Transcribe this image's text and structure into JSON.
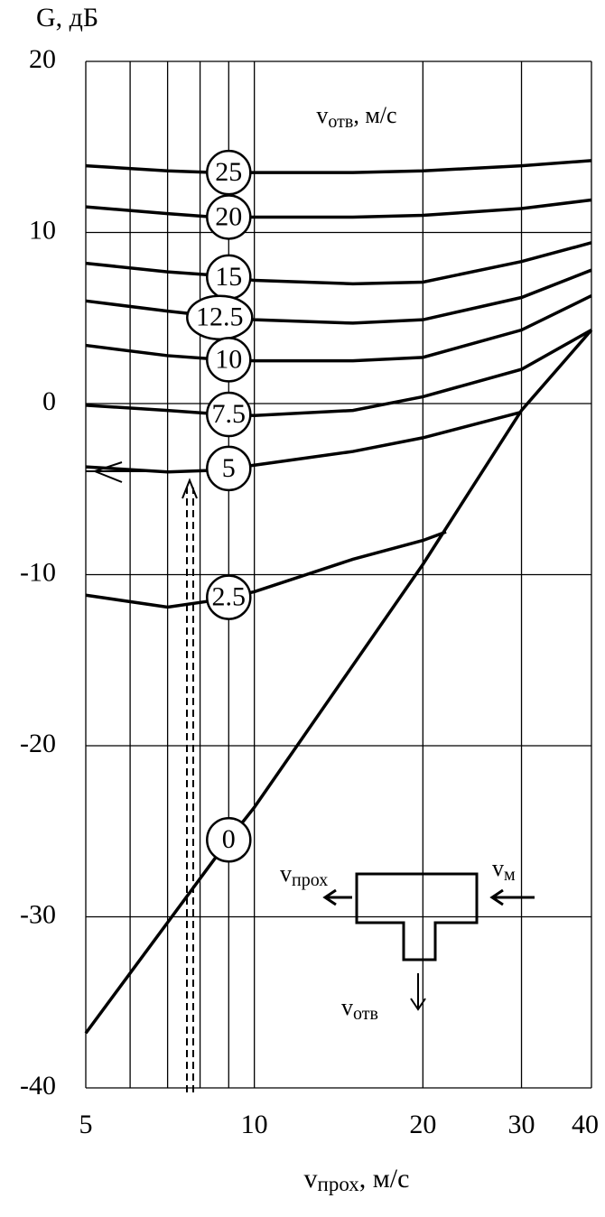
{
  "chart_data": {
    "type": "line",
    "title": "G, дБ",
    "x_label": {
      "base": "v",
      "sub": "прох",
      "rest": ", м/с"
    },
    "legend_title": {
      "base": "v",
      "sub": "отв",
      "rest": ", м/с"
    },
    "inset_labels": [
      {
        "base": "v",
        "sub": "прох"
      },
      {
        "base": "v",
        "sub": "м"
      },
      {
        "base": "v",
        "sub": "отв"
      }
    ],
    "xlog": true,
    "xlim": [
      5,
      40
    ],
    "xticks": [
      5,
      10,
      20,
      30,
      40
    ],
    "xgrid_minor": [
      6,
      7,
      8,
      9
    ],
    "ylim": [
      -40,
      20
    ],
    "yticks": [
      -40,
      -30,
      -20,
      -10,
      0,
      10,
      20
    ],
    "grid": true,
    "color": "#000000",
    "series": [
      {
        "name": "25",
        "x": [
          5,
          7,
          8.5,
          10,
          15,
          20,
          30,
          40
        ],
        "values": [
          13.9,
          13.6,
          13.5,
          13.5,
          13.5,
          13.6,
          13.9,
          14.2
        ]
      },
      {
        "name": "20",
        "x": [
          5,
          7,
          8.5,
          10,
          15,
          20,
          30,
          40
        ],
        "values": [
          11.5,
          11.1,
          10.9,
          10.9,
          10.9,
          11.0,
          11.4,
          11.9
        ]
      },
      {
        "name": "15",
        "x": [
          5,
          7,
          8.5,
          10,
          15,
          20,
          30,
          40
        ],
        "values": [
          8.2,
          7.7,
          7.5,
          7.2,
          7.0,
          7.1,
          8.3,
          9.4
        ]
      },
      {
        "name": "12.5",
        "x": [
          5,
          7,
          8.5,
          10,
          15,
          20,
          30,
          40
        ],
        "values": [
          6.0,
          5.4,
          5.1,
          4.9,
          4.7,
          4.9,
          6.2,
          7.8
        ]
      },
      {
        "name": "10",
        "x": [
          5,
          7,
          8.5,
          10,
          15,
          20,
          30,
          40
        ],
        "values": [
          3.4,
          2.8,
          2.6,
          2.5,
          2.5,
          2.7,
          4.3,
          6.3
        ]
      },
      {
        "name": "7.5",
        "x": [
          5,
          7,
          8.5,
          10,
          15,
          20,
          30,
          40
        ],
        "values": [
          -0.1,
          -0.4,
          -0.6,
          -0.7,
          -0.4,
          0.4,
          2.0,
          4.3
        ]
      },
      {
        "name": "5",
        "x": [
          5,
          7,
          8.5,
          10,
          15,
          20,
          30
        ],
        "values": [
          -3.7,
          -4.0,
          -3.9,
          -3.6,
          -2.8,
          -2.0,
          -0.5
        ]
      },
      {
        "name": "2.5",
        "x": [
          5,
          7,
          8.5,
          10,
          15,
          20,
          22
        ],
        "values": [
          -11.2,
          -11.9,
          -11.5,
          -11.0,
          -9.1,
          -8.0,
          -7.5
        ]
      },
      {
        "name": "0",
        "x": [
          5,
          9,
          10,
          20,
          30,
          40
        ],
        "values": [
          -36.8,
          -25.5,
          -23.6,
          -9.4,
          -0.4,
          4.3
        ]
      }
    ]
  }
}
